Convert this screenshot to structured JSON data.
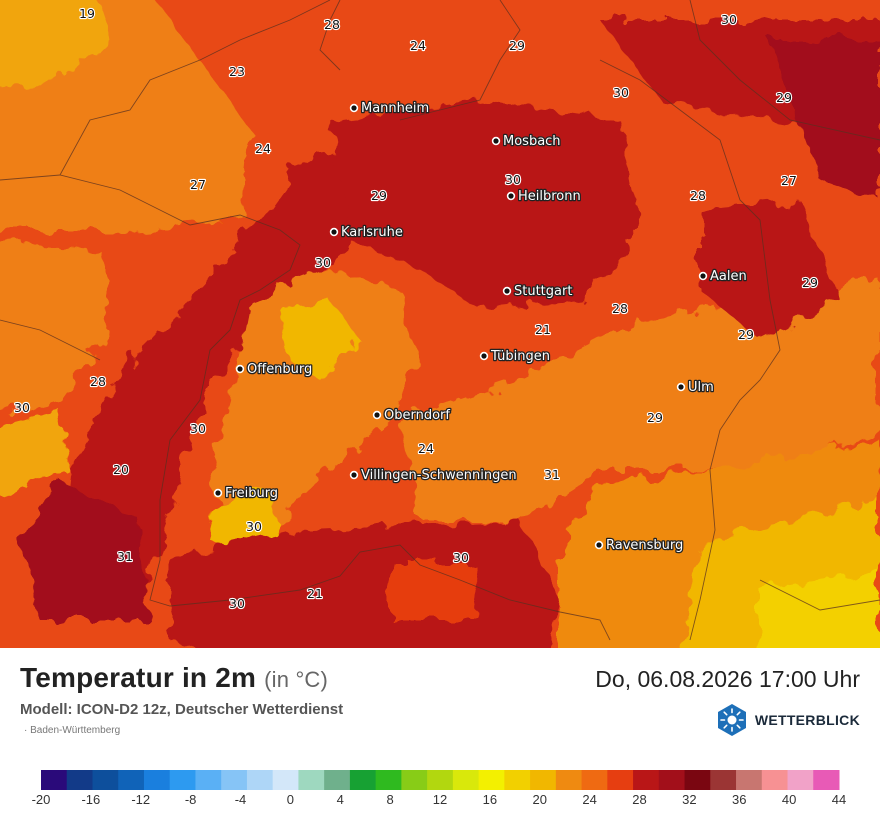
{
  "header": {
    "title": "Temperatur in 2m",
    "unit": "(in °C)",
    "datetime": "Do, 06.08.2026 17:00 Uhr",
    "model": "Modell: ICON-D2 12z, Deutscher Wetterdienst",
    "region": "· Baden-Württemberg",
    "brand": "WETTERBLICK"
  },
  "cities": [
    {
      "name": "Mannheim"
    },
    {
      "name": "Mosbach"
    },
    {
      "name": "Heilbronn"
    },
    {
      "name": "Karlsruhe"
    },
    {
      "name": "Stuttgart"
    },
    {
      "name": "Aalen"
    },
    {
      "name": "Tübingen"
    },
    {
      "name": "Offenburg"
    },
    {
      "name": "Oberndorf"
    },
    {
      "name": "Ulm"
    },
    {
      "name": "Villingen-Schwenningen"
    },
    {
      "name": "Freiburg"
    },
    {
      "name": "Ravensburg"
    }
  ],
  "values": [
    "19",
    "28",
    "24",
    "29",
    "30",
    "23",
    "30",
    "29",
    "24",
    "27",
    "29",
    "30",
    "27",
    "28",
    "30",
    "29",
    "28",
    "29",
    "21",
    "28",
    "30",
    "24",
    "30",
    "29",
    "20",
    "31",
    "30",
    "31",
    "30",
    "30",
    "21"
  ],
  "legend": {
    "ticks": [
      "-20",
      "-16",
      "-12",
      "-8",
      "-4",
      "0",
      "4",
      "8",
      "12",
      "16",
      "20",
      "24",
      "28",
      "32",
      "36",
      "40",
      "44"
    ],
    "colors": [
      "#2a0a7a",
      "#123a88",
      "#0d4f9c",
      "#1063b8",
      "#1a7fde",
      "#2d9af0",
      "#5ab0f5",
      "#86c4f6",
      "#aed6f7",
      "#d3e7f9",
      "#9ed8bf",
      "#6fb08c",
      "#17a133",
      "#2fba1f",
      "#88cc17",
      "#b2d70f",
      "#d9e80b",
      "#f3f000",
      "#f2d000",
      "#f1b700",
      "#ef8a11",
      "#ef6a12",
      "#e63e11",
      "#b91617",
      "#a20f1a",
      "#7a0611",
      "#9b3534",
      "#c87670",
      "#f79193",
      "#f1a2c8",
      "#e85ab6"
    ]
  }
}
